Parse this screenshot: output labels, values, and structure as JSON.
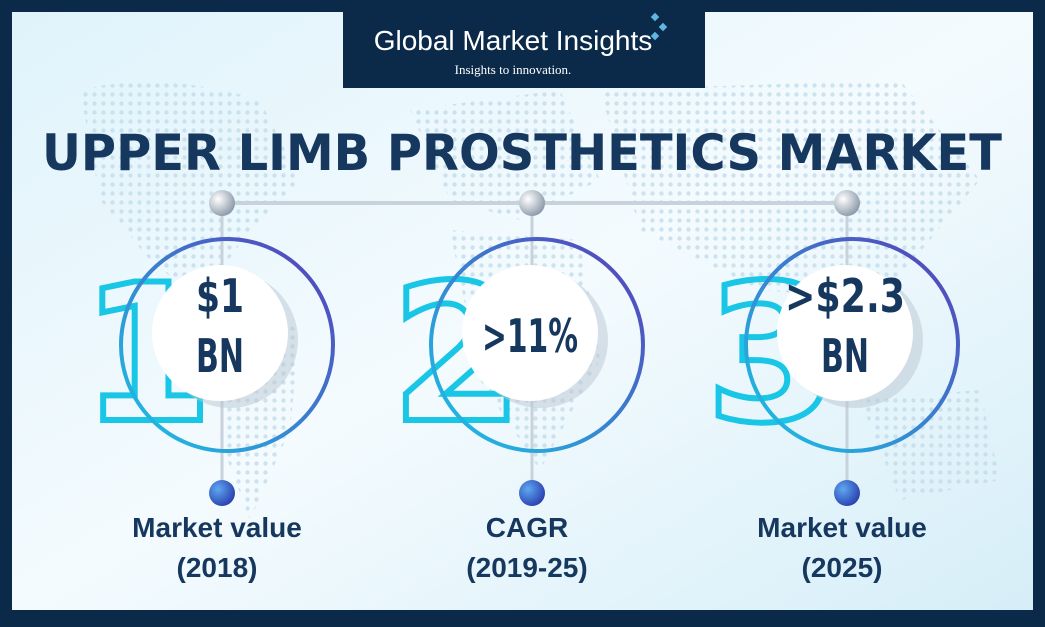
{
  "header": {
    "brand": "Global Market Insights",
    "tagline": "Insights to innovation."
  },
  "title": "UPPER LIMB PROSTHETICS MARKET",
  "stats": [
    {
      "number": "1",
      "value_lines": [
        "$1",
        "BN"
      ],
      "label_lines": [
        "Market value",
        "(2018)"
      ]
    },
    {
      "number": "2",
      "value_lines": [
        ">11%"
      ],
      "label_lines": [
        "CAGR",
        "(2019-25)"
      ]
    },
    {
      "number": "3",
      "value_lines": [
        ">$2.3",
        "BN"
      ],
      "label_lines": [
        "Market value",
        "(2025)"
      ]
    }
  ]
}
